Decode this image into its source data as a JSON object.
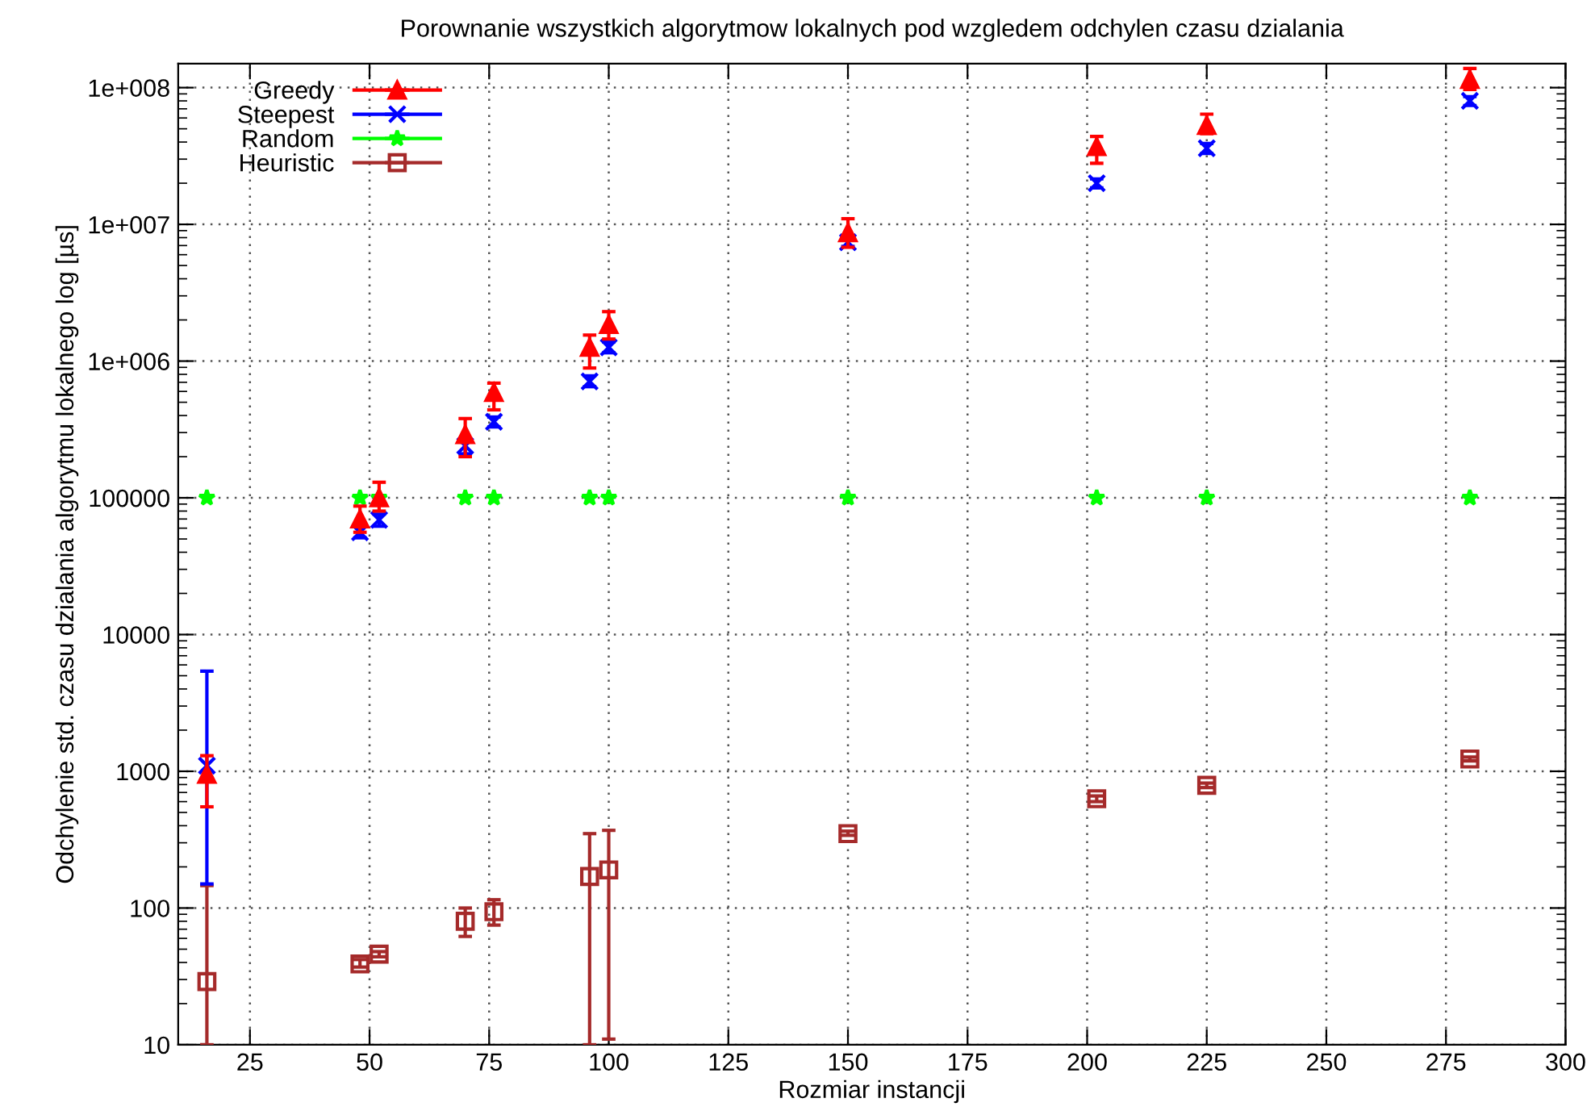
{
  "chart_data": {
    "type": "scatter",
    "title": "Porownanie wszystkich algorytmow lokalnych pod wzgledem odchylen czasu dzialania",
    "xlabel": "Rozmiar instancji",
    "ylabel": "Odchylenie std. czasu dzialania algorytmu lokalnego log [µs]",
    "x": [
      16,
      48,
      52,
      70,
      76,
      96,
      100,
      150,
      202,
      225,
      280
    ],
    "series": [
      {
        "name": "Greedy",
        "color": "#ff0000",
        "marker": "triangle",
        "values": [
          950,
          70000,
          100000,
          290000,
          590000,
          1260000,
          1850000,
          8700000,
          37000000,
          53000000,
          115000000
        ],
        "errors": [
          [
            550,
            1300
          ],
          [
            56000,
            87000
          ],
          [
            80000,
            130000
          ],
          [
            200000,
            380000
          ],
          [
            440000,
            690000
          ],
          [
            890000,
            1550000
          ],
          [
            1450000,
            2300000
          ],
          [
            6800000,
            11000000
          ],
          [
            28000000,
            44000000
          ],
          [
            46000000,
            64000000
          ],
          [
            97000000,
            138000000
          ]
        ]
      },
      {
        "name": "Steepest",
        "color": "#0000ff",
        "marker": "cross",
        "values": [
          1100,
          56000,
          69000,
          240000,
          360000,
          710000,
          1260000,
          7400000,
          20000000,
          36000000,
          80000000
        ],
        "errors": [
          [
            150,
            5400
          ],
          [
            51000,
            62000
          ],
          [
            62000,
            76000
          ],
          [
            210000,
            270000
          ],
          [
            330000,
            390000
          ],
          [
            650000,
            780000
          ],
          [
            1150000,
            1380000
          ],
          [
            6900000,
            7900000
          ],
          [
            18500000,
            21500000
          ],
          [
            33000000,
            39000000
          ],
          [
            74000000,
            86000000
          ]
        ]
      },
      {
        "name": "Random",
        "color": "#00ff00",
        "marker": "star",
        "values": [
          100000,
          100000,
          100000,
          100000,
          100000,
          100000,
          100000,
          100000,
          100000,
          100000,
          100000
        ]
      },
      {
        "name": "Heuristic",
        "color": "#a52a2a",
        "marker": "square",
        "values": [
          29,
          39,
          46,
          80,
          94,
          170,
          190,
          350,
          630,
          790,
          1230
        ],
        "errors": [
          [
            10,
            146
          ],
          [
            37,
            42
          ],
          [
            44,
            48
          ],
          [
            62,
            100
          ],
          [
            75,
            115
          ],
          [
            10,
            350
          ],
          [
            11,
            370
          ],
          [
            340,
            365
          ],
          [
            600,
            660
          ],
          [
            760,
            820
          ],
          [
            1190,
            1270
          ]
        ]
      }
    ],
    "log": "y",
    "xlim": [
      10,
      300
    ],
    "xticks": [
      25,
      50,
      75,
      100,
      125,
      150,
      175,
      200,
      225,
      250,
      275,
      300
    ],
    "ylim": [
      10,
      150000000
    ],
    "yticks": [
      10,
      100,
      1000,
      10000,
      100000,
      {
        "value": 1000000,
        "label": "1e+006"
      },
      {
        "value": 10000000,
        "label": "1e+007"
      },
      {
        "value": 100000000,
        "label": "1e+008"
      }
    ],
    "grid": true,
    "legend": "top left"
  }
}
